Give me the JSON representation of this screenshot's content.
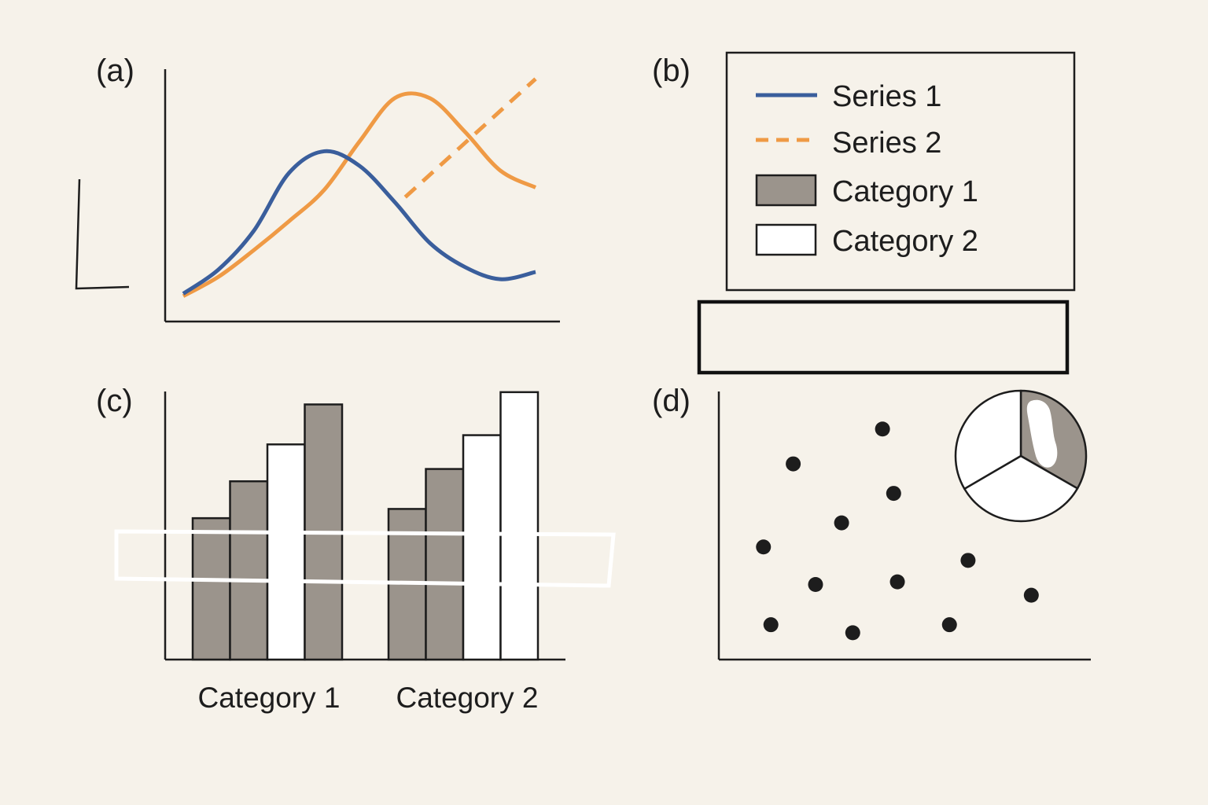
{
  "panels": {
    "a": "(a)",
    "b": "(b)",
    "c": "(c)",
    "d": "(d)"
  },
  "colors": {
    "series1": "#3a5e9c",
    "series2": "#ef9a45",
    "category1": "#9b948c",
    "category2": "#ffffff",
    "axis": "#1d1d1d",
    "background": "#f6f2ea"
  },
  "legend": {
    "items": [
      {
        "label": "Series 1",
        "kind": "line-solid",
        "color_key": "series1"
      },
      {
        "label": "Series 2",
        "kind": "line-dashed",
        "color_key": "series2"
      },
      {
        "label": "Category 1",
        "kind": "box",
        "color_key": "category1"
      },
      {
        "label": "Category 2",
        "kind": "box",
        "color_key": "category2"
      }
    ]
  },
  "chart_data": [
    {
      "panel": "a",
      "type": "line",
      "xlim": [
        0,
        10
      ],
      "ylim": [
        0,
        10
      ],
      "series": [
        {
          "name": "Series 1",
          "style": "solid",
          "color_key": "series1",
          "x": [
            0,
            1,
            2,
            3,
            4,
            5,
            6,
            7,
            8,
            9,
            10
          ],
          "y": [
            0.6,
            1.6,
            3.2,
            5.6,
            6.5,
            5.9,
            4.4,
            2.7,
            1.7,
            1.2,
            1.5
          ]
        },
        {
          "name": "Series 2",
          "style": "solid",
          "color_key": "series2",
          "x": [
            0,
            1,
            2,
            3,
            4,
            5,
            6,
            7,
            8,
            9,
            10
          ],
          "y": [
            0.5,
            1.3,
            2.4,
            3.6,
            4.9,
            6.9,
            8.7,
            8.7,
            7.3,
            5.7,
            5.0
          ]
        },
        {
          "name": "Series 2",
          "style": "dashed",
          "color_key": "series2",
          "x": [
            6.3,
            10
          ],
          "y": [
            4.6,
            9.5
          ]
        }
      ]
    },
    {
      "panel": "c",
      "type": "bar",
      "categories": [
        "Category 1",
        "Category 2"
      ],
      "ylim": [
        0,
        10
      ],
      "groups": [
        {
          "category": "Category 1",
          "bars": [
            {
              "value": 4.6,
              "fill_key": "category1"
            },
            {
              "value": 5.8,
              "fill_key": "category1"
            },
            {
              "value": 7.0,
              "fill_key": "category2"
            },
            {
              "value": 8.3,
              "fill_key": "category1"
            }
          ]
        },
        {
          "category": "Category 2",
          "bars": [
            {
              "value": 4.9,
              "fill_key": "category1"
            },
            {
              "value": 6.2,
              "fill_key": "category1"
            },
            {
              "value": 7.3,
              "fill_key": "category2"
            },
            {
              "value": 8.7,
              "fill_key": "category2"
            }
          ]
        }
      ]
    },
    {
      "panel": "d",
      "type": "scatter",
      "xlim": [
        0,
        10
      ],
      "ylim": [
        0,
        10
      ],
      "points": [
        [
          2.0,
          7.3
        ],
        [
          4.4,
          8.6
        ],
        [
          4.7,
          6.2
        ],
        [
          3.3,
          5.1
        ],
        [
          1.2,
          4.2
        ],
        [
          6.7,
          3.7
        ],
        [
          2.6,
          2.8
        ],
        [
          4.8,
          2.9
        ],
        [
          8.4,
          2.4
        ],
        [
          1.4,
          1.3
        ],
        [
          3.6,
          1.0
        ],
        [
          6.2,
          1.3
        ]
      ]
    },
    {
      "panel": "d-inset",
      "type": "pie",
      "slices": [
        {
          "value": 0.333,
          "fill_key": "category1"
        },
        {
          "value": 0.333,
          "fill_key": "category2"
        },
        {
          "value": 0.334,
          "fill_key": "category2"
        }
      ]
    }
  ]
}
